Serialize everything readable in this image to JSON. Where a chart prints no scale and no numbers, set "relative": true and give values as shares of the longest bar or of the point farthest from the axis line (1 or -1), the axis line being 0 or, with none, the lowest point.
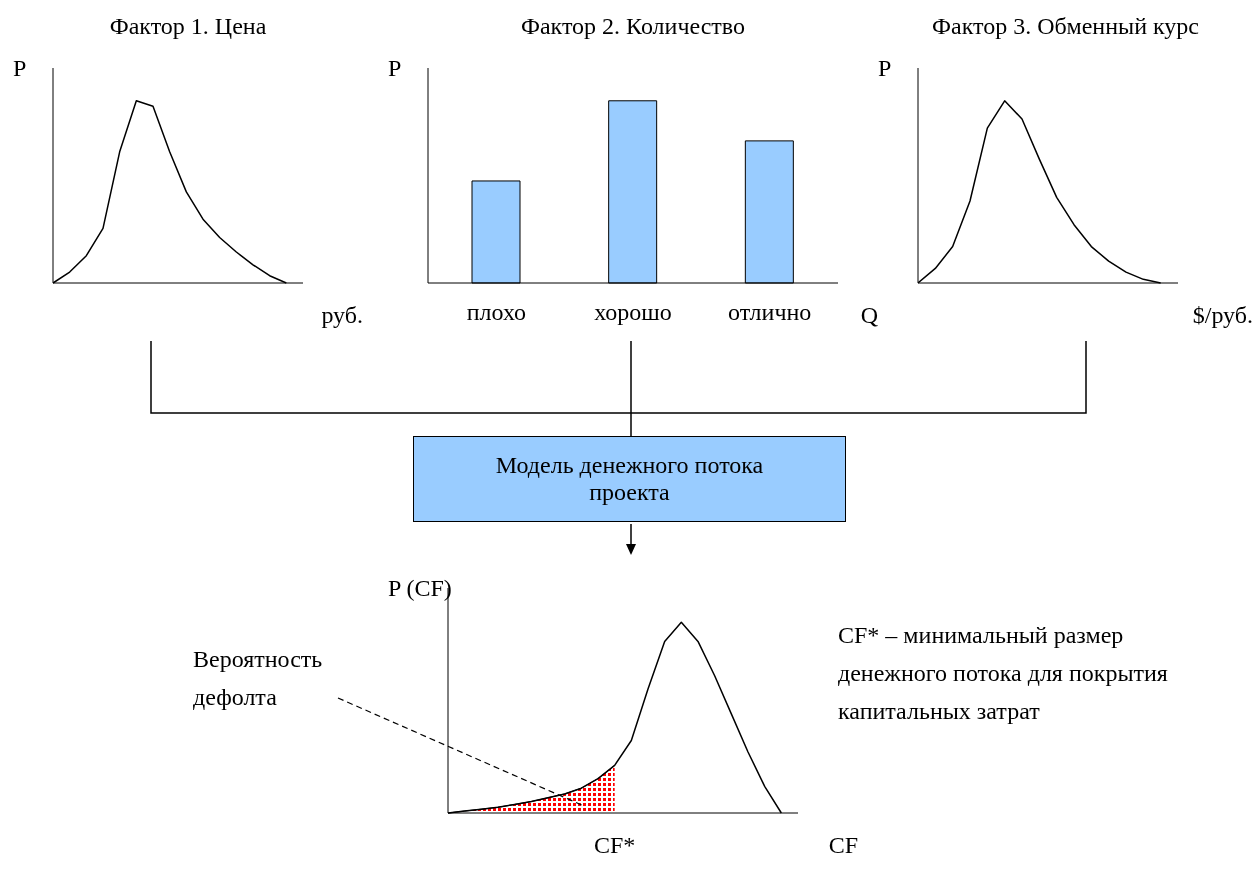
{
  "chart_data": [
    {
      "type": "line",
      "relative": true,
      "title": "Фактор 1. Цена",
      "ylabel": "P",
      "xlabel": "руб.",
      "categories": [
        null,
        null,
        null,
        null,
        null,
        null,
        null,
        null,
        null,
        null,
        null,
        null,
        null,
        null,
        null
      ],
      "series": [
        {
          "color": "#000000",
          "values": [
            0,
            0.06,
            0.15,
            0.3,
            0.72,
            1,
            0.97,
            0.72,
            0.5,
            0.35,
            0.25,
            0.17,
            0.1,
            0.04,
            0
          ]
        }
      ]
    },
    {
      "type": "bar",
      "relative": true,
      "title": "Фактор 2. Количество",
      "ylabel": "P",
      "xlabel": "Q",
      "color": "#99ccff",
      "categories": [
        "плохо",
        "хорошо",
        "отлично"
      ],
      "values": [
        0.56,
        1,
        0.78
      ]
    },
    {
      "type": "line",
      "relative": true,
      "title": "Фактор 3. Обменный курс",
      "ylabel": "P",
      "xlabel": "$/руб.",
      "categories": [
        null,
        null,
        null,
        null,
        null,
        null,
        null,
        null,
        null,
        null,
        null,
        null,
        null,
        null,
        null
      ],
      "series": [
        {
          "color": "#000000",
          "values": [
            0,
            0.08,
            0.2,
            0.45,
            0.85,
            1,
            0.9,
            0.68,
            0.47,
            0.32,
            0.2,
            0.12,
            0.06,
            0.02,
            0
          ]
        }
      ]
    },
    {
      "type": "other",
      "title": "Модель денежного потока проекта"
    },
    {
      "type": "line",
      "relative": true,
      "ylabel": "P (CF)",
      "xlabel": "CF",
      "categories": [
        null,
        null,
        null,
        null,
        null,
        null,
        null,
        null,
        null,
        null,
        null,
        null,
        null,
        null,
        null,
        null,
        null,
        null,
        null,
        null,
        null
      ],
      "annotations": [
        "Вероятность дефолта",
        "CF* – минимальный размер денежного потока для покрытия капитальных затрат",
        "CF*"
      ],
      "series": [
        {
          "type": "area",
          "color": "#ff0000",
          "values": [
            0,
            0.01,
            0.02,
            0.03,
            0.045,
            0.06,
            0.08,
            0.1,
            0.13,
            0.18,
            0.25,
            null,
            null,
            null,
            null,
            null,
            null,
            null,
            null,
            null,
            null
          ]
        },
        {
          "type": "line",
          "color": "#000000",
          "values": [
            0,
            0.01,
            0.02,
            0.03,
            0.045,
            0.06,
            0.08,
            0.1,
            0.13,
            0.18,
            0.25,
            0.38,
            0.65,
            0.9,
            1,
            0.9,
            0.72,
            0.52,
            0.32,
            0.14,
            0
          ]
        }
      ]
    }
  ]
}
